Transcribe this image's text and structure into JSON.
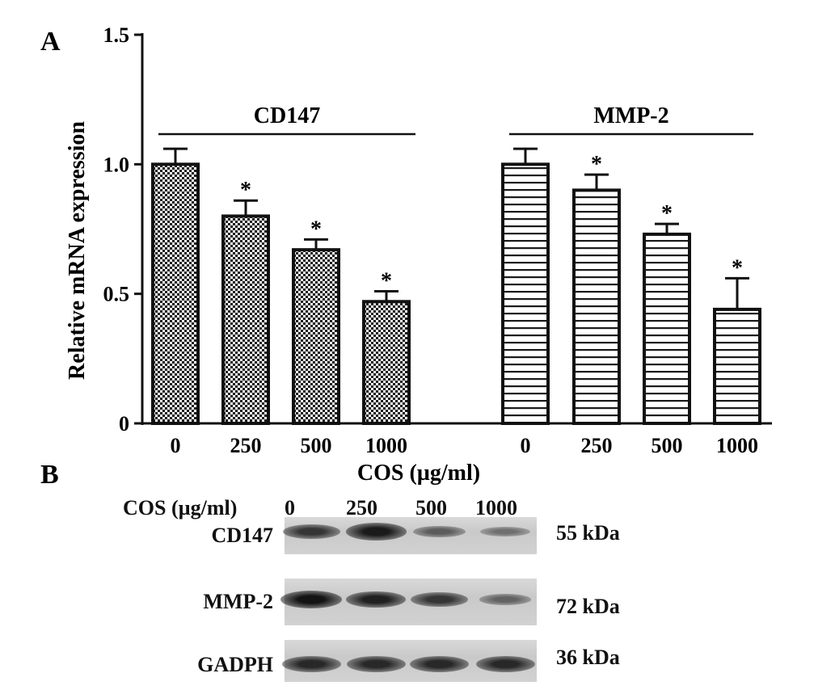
{
  "panel_a_label": "A",
  "panel_b_label": "B",
  "chart_data": {
    "type": "bar",
    "ylabel": "Relative mRNA expression",
    "xlabel": "COS (µg/ml)",
    "ylim": [
      0,
      1.5
    ],
    "yticks": [
      0,
      0.5,
      1.0,
      1.5
    ],
    "ytick_labels": [
      "0",
      "0.5",
      "1.0",
      "1.5"
    ],
    "categories": [
      "0",
      "250",
      "500",
      "1000"
    ],
    "significance_marker": "*",
    "groups": [
      {
        "name": "CD147",
        "pattern": "checker",
        "values": [
          1.0,
          0.8,
          0.67,
          0.47
        ],
        "errors": [
          0.06,
          0.06,
          0.04,
          0.04
        ],
        "significant": [
          false,
          true,
          true,
          true
        ]
      },
      {
        "name": "MMP-2",
        "pattern": "horizontal-lines",
        "values": [
          1.0,
          0.9,
          0.73,
          0.44
        ],
        "errors": [
          0.06,
          0.06,
          0.04,
          0.12
        ],
        "significant": [
          false,
          true,
          true,
          true
        ]
      }
    ]
  },
  "western_blot": {
    "header_label": "COS (µg/ml)",
    "lanes": [
      "0",
      "250",
      "500",
      "1000"
    ],
    "rows": [
      {
        "protein": "CD147",
        "size": "55 kDa",
        "band_intensity": [
          0.75,
          0.95,
          0.45,
          0.3
        ]
      },
      {
        "protein": "MMP-2",
        "size": "72 kDa",
        "band_intensity": [
          1.0,
          0.9,
          0.75,
          0.4
        ]
      },
      {
        "protein": "GADPH",
        "size": "36 kDa",
        "band_intensity": [
          0.85,
          0.85,
          0.85,
          0.85
        ]
      }
    ]
  }
}
